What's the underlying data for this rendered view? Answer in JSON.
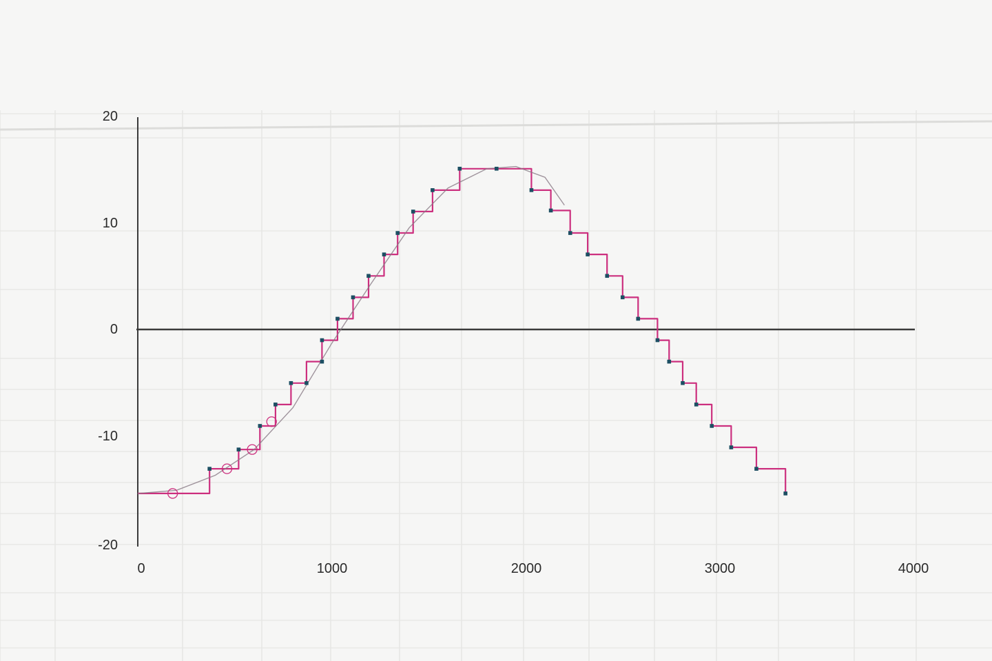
{
  "chart_data": {
    "type": "line",
    "title": "",
    "xlabel": "",
    "ylabel": "",
    "xlim": [
      0,
      4000
    ],
    "ylim": [
      -20,
      20
    ],
    "x_ticks": [
      "0",
      "1000",
      "2000",
      "3000",
      "4000"
    ],
    "y_ticks": [
      "20",
      "10",
      "0",
      "-10",
      "-20"
    ],
    "grid": false,
    "legend": "none",
    "colors": {
      "step_series": "#cc2f7e",
      "smooth_curve": "#8a7a86",
      "markers": "#1d4f63",
      "axes": "#3a3a3a"
    },
    "series": [
      {
        "role": "staircase",
        "points": [
          [
            0,
            -15.3
          ],
          [
            370,
            -15.3
          ],
          [
            370,
            -13
          ],
          [
            520,
            -13
          ],
          [
            520,
            -11.2
          ],
          [
            630,
            -11.2
          ],
          [
            630,
            -9
          ],
          [
            710,
            -9
          ],
          [
            710,
            -7
          ],
          [
            790,
            -7
          ],
          [
            790,
            -5
          ],
          [
            870,
            -5
          ],
          [
            870,
            -3
          ],
          [
            950,
            -3
          ],
          [
            950,
            -1
          ],
          [
            1030,
            -1
          ],
          [
            1030,
            1
          ],
          [
            1110,
            1
          ],
          [
            1110,
            3
          ],
          [
            1190,
            3
          ],
          [
            1190,
            5
          ],
          [
            1270,
            5
          ],
          [
            1270,
            7
          ],
          [
            1340,
            7
          ],
          [
            1340,
            9
          ],
          [
            1420,
            9
          ],
          [
            1420,
            11
          ],
          [
            1520,
            11
          ],
          [
            1520,
            13
          ],
          [
            1660,
            13
          ],
          [
            1660,
            15
          ],
          [
            2030,
            15
          ],
          [
            2030,
            13
          ],
          [
            2130,
            13
          ],
          [
            2130,
            11.1
          ],
          [
            2230,
            11.1
          ],
          [
            2230,
            9
          ],
          [
            2320,
            9
          ],
          [
            2320,
            7
          ],
          [
            2420,
            7
          ],
          [
            2420,
            5
          ],
          [
            2500,
            5
          ],
          [
            2500,
            3
          ],
          [
            2580,
            3
          ],
          [
            2580,
            1
          ],
          [
            2680,
            1
          ],
          [
            2680,
            -1
          ],
          [
            2740,
            -1
          ],
          [
            2740,
            -3
          ],
          [
            2810,
            -3
          ],
          [
            2810,
            -5
          ],
          [
            2880,
            -5
          ],
          [
            2880,
            -7
          ],
          [
            2960,
            -7
          ],
          [
            2960,
            -9
          ],
          [
            3060,
            -9
          ],
          [
            3060,
            -11
          ],
          [
            3190,
            -11
          ],
          [
            3190,
            -13
          ],
          [
            3340,
            -13
          ],
          [
            3340,
            -15.3
          ]
        ]
      },
      {
        "role": "smooth",
        "points": [
          [
            0,
            -15.3
          ],
          [
            200,
            -15
          ],
          [
            400,
            -13.6
          ],
          [
            600,
            -11.2
          ],
          [
            800,
            -7.3
          ],
          [
            1000,
            -1.3
          ],
          [
            1200,
            4.2
          ],
          [
            1400,
            9.5
          ],
          [
            1600,
            13.2
          ],
          [
            1800,
            15
          ],
          [
            1950,
            15.2
          ],
          [
            2100,
            14.2
          ],
          [
            2200,
            11.6
          ]
        ]
      }
    ],
    "markers": [
      [
        370,
        -13
      ],
      [
        520,
        -11.2
      ],
      [
        630,
        -9
      ],
      [
        710,
        -7
      ],
      [
        790,
        -5
      ],
      [
        870,
        -5
      ],
      [
        950,
        -3
      ],
      [
        950,
        -1
      ],
      [
        1030,
        1
      ],
      [
        1110,
        3
      ],
      [
        1190,
        5
      ],
      [
        1270,
        7
      ],
      [
        1340,
        9
      ],
      [
        1420,
        11
      ],
      [
        1520,
        13
      ],
      [
        1660,
        15
      ],
      [
        1850,
        15
      ],
      [
        2030,
        13
      ],
      [
        2130,
        11.1
      ],
      [
        2230,
        9
      ],
      [
        2320,
        7
      ],
      [
        2420,
        5
      ],
      [
        2500,
        3
      ],
      [
        2580,
        1
      ],
      [
        2680,
        -1
      ],
      [
        2740,
        -3
      ],
      [
        2810,
        -5
      ],
      [
        2880,
        -7
      ],
      [
        2960,
        -9
      ],
      [
        3060,
        -11
      ],
      [
        3190,
        -13
      ],
      [
        3340,
        -15.3
      ]
    ],
    "circles": [
      [
        180,
        -15.3
      ],
      [
        460,
        -13
      ],
      [
        590,
        -11.2
      ],
      [
        690,
        -8.6
      ]
    ]
  }
}
